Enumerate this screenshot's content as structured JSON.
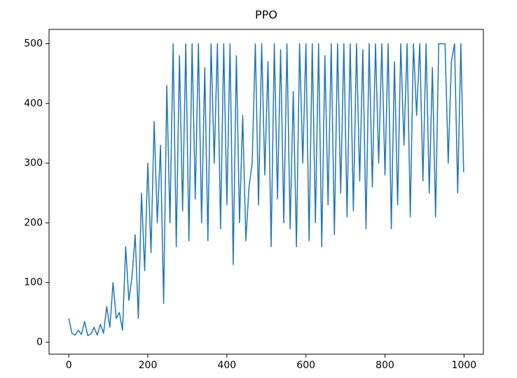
{
  "chart_data": {
    "type": "line",
    "title": "PPO",
    "x": [
      0,
      8,
      16,
      24,
      32,
      40,
      48,
      56,
      64,
      72,
      80,
      88,
      96,
      104,
      112,
      120,
      128,
      136,
      144,
      152,
      160,
      168,
      176,
      184,
      192,
      200,
      208,
      216,
      224,
      232,
      240,
      248,
      256,
      264,
      272,
      280,
      288,
      296,
      304,
      312,
      320,
      328,
      336,
      344,
      352,
      360,
      368,
      376,
      384,
      392,
      400,
      408,
      416,
      424,
      432,
      440,
      448,
      456,
      464,
      472,
      480,
      488,
      496,
      504,
      512,
      520,
      528,
      536,
      544,
      552,
      560,
      568,
      576,
      584,
      592,
      600,
      608,
      616,
      624,
      632,
      640,
      648,
      656,
      664,
      672,
      680,
      688,
      696,
      704,
      712,
      720,
      728,
      736,
      744,
      752,
      760,
      768,
      776,
      784,
      792,
      800,
      808,
      816,
      824,
      832,
      840,
      848,
      856,
      864,
      872,
      880,
      888,
      896,
      904,
      912,
      920,
      928,
      936,
      944,
      952,
      960,
      968,
      976,
      984,
      992,
      999
    ],
    "series": [
      {
        "name": "PPO",
        "color": "#1f77b4",
        "values": [
          40,
          15,
          12,
          20,
          13,
          35,
          11,
          14,
          25,
          12,
          30,
          15,
          60,
          25,
          100,
          40,
          50,
          20,
          160,
          70,
          110,
          180,
          40,
          250,
          120,
          300,
          150,
          370,
          200,
          330,
          65,
          430,
          200,
          500,
          160,
          480,
          220,
          500,
          170,
          500,
          240,
          500,
          200,
          460,
          170,
          500,
          300,
          500,
          190,
          500,
          230,
          500,
          130,
          480,
          200,
          380,
          170,
          260,
          300,
          500,
          230,
          500,
          280,
          470,
          160,
          500,
          240,
          490,
          200,
          500,
          190,
          420,
          160,
          500,
          300,
          500,
          170,
          500,
          200,
          500,
          160,
          480,
          230,
          500,
          180,
          500,
          250,
          500,
          210,
          500,
          220,
          500,
          270,
          490,
          190,
          500,
          260,
          500,
          300,
          500,
          280,
          500,
          190,
          470,
          230,
          500,
          330,
          500,
          210,
          500,
          380,
          500,
          270,
          500,
          250,
          460,
          210,
          500,
          500,
          500,
          300,
          470,
          500,
          250,
          500,
          285
        ]
      }
    ],
    "xlim": [
      -49.95,
      1048.95
    ],
    "ylim": [
      -20,
      524
    ],
    "xticks": [
      0,
      200,
      400,
      600,
      800,
      1000
    ],
    "yticks": [
      0,
      100,
      200,
      300,
      400,
      500
    ]
  }
}
